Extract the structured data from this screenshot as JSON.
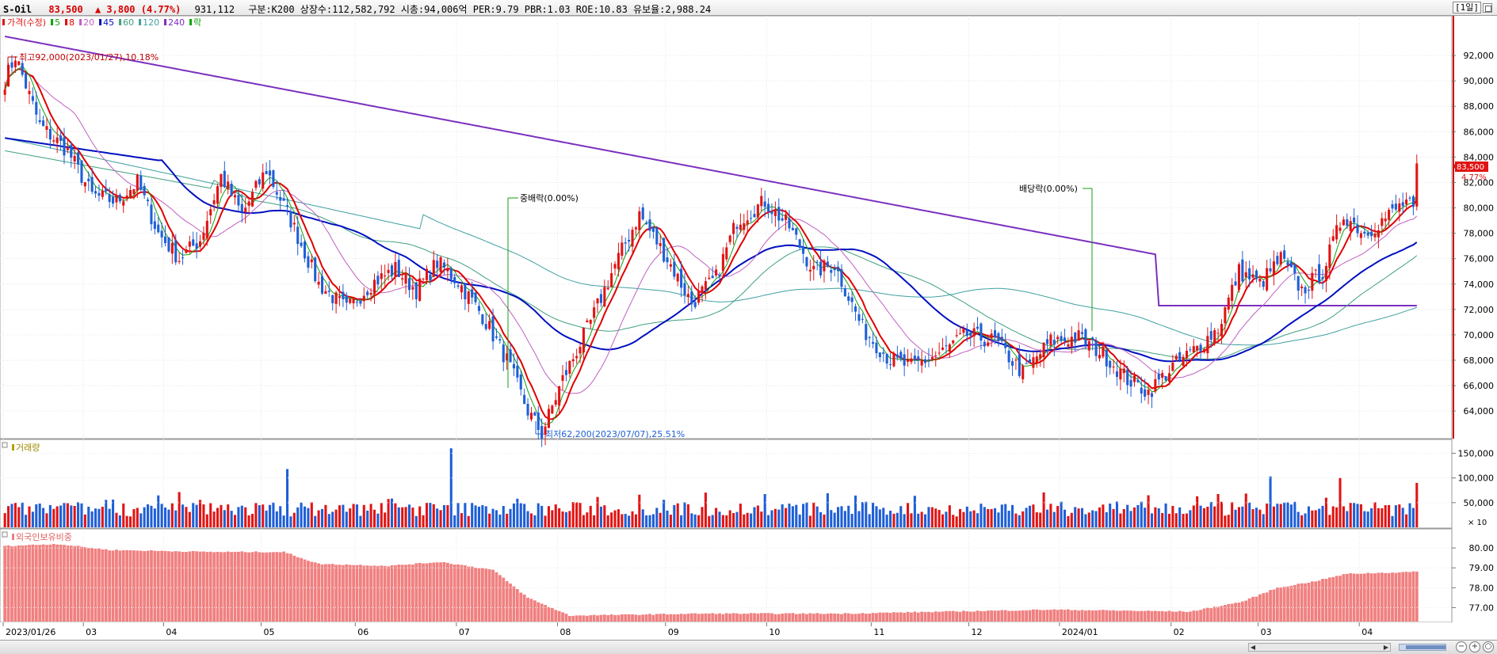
{
  "header": {
    "code": "S-Oil",
    "price": "83,500",
    "change": "▲ 3,800 (4.77%)",
    "volume": "931,112",
    "stats": "구분:K200 상장수:112,582,792 시총:94,006억 PER:9.79 PBR:1.03 ROE:10.83 유보율:2,988.24",
    "period": "[1일]"
  },
  "price_panel": {
    "legend_title": "가격(수정)",
    "legend_items": [
      {
        "label": "5",
        "color": "#10a010"
      },
      {
        "label": "8",
        "color": "#e00000"
      },
      {
        "label": "20",
        "color": "#c060c0"
      },
      {
        "label": "45",
        "color": "#0010c0"
      },
      {
        "label": "60",
        "color": "#40a080"
      },
      {
        "label": "120",
        "color": "#40a0a0"
      },
      {
        "label": "240",
        "color": "#7b2fbe"
      },
      {
        "label": "락",
        "color": "#10a010"
      }
    ],
    "high_label": "최고92,000(2023/01/27),10.18%",
    "low_label": "최저62,200(2023/07/07),25.51%",
    "split_label": "중배락(0.00%)",
    "dividend_label": "배당락(0.00%)",
    "current_price_tag": "83,500",
    "current_pct_tag": "4.77%",
    "y_ticks": [
      "92,000",
      "90,000",
      "88,000",
      "86,000",
      "84,000",
      "82,000",
      "80,000",
      "78,000",
      "76,000",
      "74,000",
      "72,000",
      "70,000",
      "68,000",
      "66,000",
      "64,000"
    ]
  },
  "volume_panel": {
    "legend": "거래량",
    "y_ticks": [
      "150,000",
      "100,000",
      "50,000"
    ],
    "unit": "× 10"
  },
  "foreign_panel": {
    "legend": "외국인보유비중",
    "y_ticks": [
      "80.00",
      "79.00",
      "78.00",
      "77.00"
    ]
  },
  "x_axis": {
    "labels": [
      "2023/01/26",
      "03",
      "04",
      "05",
      "06",
      "07",
      "08",
      "09",
      "10",
      "11",
      "12",
      "2024/01",
      "02",
      "03",
      "04"
    ]
  },
  "colors": {
    "up": "#e11414",
    "down": "#1e5fd6",
    "ma5": "#10a010",
    "ma8": "#e00000",
    "ma20": "#c060c0",
    "ma45": "#0010c0",
    "ma60": "#40a080",
    "ma120": "#40a0a0",
    "ma240": "#7b2fbe",
    "foreign_bar": "#f08080"
  },
  "chart_data": {
    "type": "candlestick",
    "title": "S-Oil",
    "ylim": [
      62200,
      94000
    ],
    "price_path": [
      {
        "d": 0,
        "c": 90000
      },
      {
        "d": 3,
        "c": 92000
      },
      {
        "d": 10,
        "c": 86500
      },
      {
        "d": 18,
        "c": 84500
      },
      {
        "d": 25,
        "c": 81000
      },
      {
        "d": 32,
        "c": 80500
      },
      {
        "d": 38,
        "c": 82000
      },
      {
        "d": 44,
        "c": 78000
      },
      {
        "d": 50,
        "c": 76000
      },
      {
        "d": 56,
        "c": 77500
      },
      {
        "d": 62,
        "c": 82500
      },
      {
        "d": 68,
        "c": 79500
      },
      {
        "d": 75,
        "c": 83000
      },
      {
        "d": 82,
        "c": 79000
      },
      {
        "d": 90,
        "c": 74000
      },
      {
        "d": 98,
        "c": 72000
      },
      {
        "d": 105,
        "c": 74000
      },
      {
        "d": 112,
        "c": 75200
      },
      {
        "d": 118,
        "c": 73500
      },
      {
        "d": 124,
        "c": 75700
      },
      {
        "d": 130,
        "c": 74200
      },
      {
        "d": 137,
        "c": 71500
      },
      {
        "d": 144,
        "c": 68000
      },
      {
        "d": 150,
        "c": 64000
      },
      {
        "d": 154,
        "c": 62200
      },
      {
        "d": 160,
        "c": 66500
      },
      {
        "d": 168,
        "c": 71000
      },
      {
        "d": 175,
        "c": 75500
      },
      {
        "d": 182,
        "c": 79500
      },
      {
        "d": 190,
        "c": 76000
      },
      {
        "d": 197,
        "c": 72500
      },
      {
        "d": 204,
        "c": 74500
      },
      {
        "d": 210,
        "c": 79000
      },
      {
        "d": 218,
        "c": 80500
      },
      {
        "d": 225,
        "c": 78500
      },
      {
        "d": 232,
        "c": 75000
      },
      {
        "d": 238,
        "c": 75500
      },
      {
        "d": 246,
        "c": 70500
      },
      {
        "d": 254,
        "c": 68000
      },
      {
        "d": 260,
        "c": 67500
      },
      {
        "d": 268,
        "c": 68500
      },
      {
        "d": 276,
        "c": 70000
      },
      {
        "d": 284,
        "c": 69500
      },
      {
        "d": 292,
        "c": 67000
      },
      {
        "d": 300,
        "c": 69500
      },
      {
        "d": 308,
        "c": 69800
      },
      {
        "d": 315,
        "c": 68500
      },
      {
        "d": 322,
        "c": 66500
      },
      {
        "d": 328,
        "c": 65500
      },
      {
        "d": 335,
        "c": 67500
      },
      {
        "d": 342,
        "c": 69000
      },
      {
        "d": 348,
        "c": 70500
      },
      {
        "d": 354,
        "c": 75000
      },
      {
        "d": 360,
        "c": 74000
      },
      {
        "d": 366,
        "c": 76000
      },
      {
        "d": 372,
        "c": 73500
      },
      {
        "d": 378,
        "c": 75000
      },
      {
        "d": 384,
        "c": 79500
      },
      {
        "d": 390,
        "c": 78000
      },
      {
        "d": 396,
        "c": 79200
      },
      {
        "d": 402,
        "c": 80500
      },
      {
        "d": 404,
        "c": 79700
      },
      {
        "d": 405,
        "c": 83500
      }
    ],
    "volume_ylim": [
      0,
      170000
    ],
    "foreign_ylim": [
      76.3,
      80.8
    ],
    "foreign_path": [
      {
        "d": 0,
        "v": 80.1
      },
      {
        "d": 15,
        "v": 80.2
      },
      {
        "d": 30,
        "v": 79.9
      },
      {
        "d": 60,
        "v": 79.8
      },
      {
        "d": 80,
        "v": 79.8
      },
      {
        "d": 90,
        "v": 79.2
      },
      {
        "d": 110,
        "v": 79.1
      },
      {
        "d": 125,
        "v": 79.3
      },
      {
        "d": 140,
        "v": 78.9
      },
      {
        "d": 150,
        "v": 77.5
      },
      {
        "d": 162,
        "v": 76.6
      },
      {
        "d": 200,
        "v": 76.7
      },
      {
        "d": 240,
        "v": 76.7
      },
      {
        "d": 300,
        "v": 76.9
      },
      {
        "d": 340,
        "v": 76.8
      },
      {
        "d": 355,
        "v": 77.3
      },
      {
        "d": 365,
        "v": 78.0
      },
      {
        "d": 375,
        "v": 78.3
      },
      {
        "d": 385,
        "v": 78.7
      },
      {
        "d": 405,
        "v": 78.8
      }
    ],
    "days": 406
  }
}
